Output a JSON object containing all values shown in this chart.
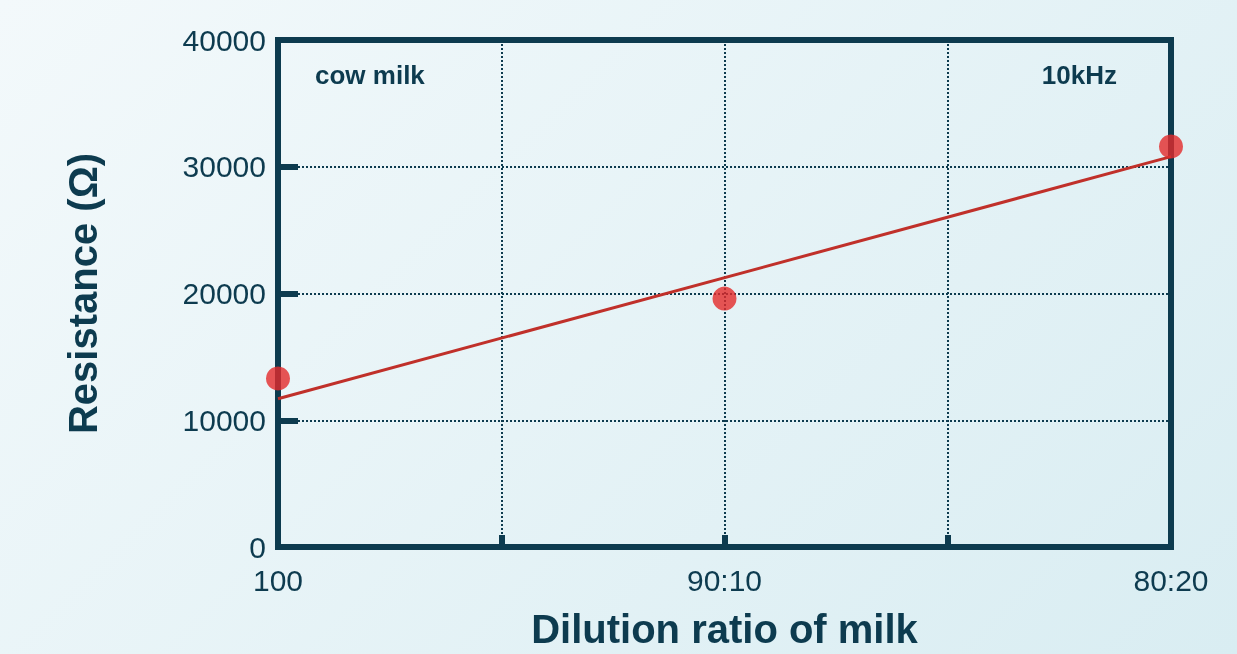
{
  "chart_data": {
    "type": "scatter",
    "xlabel": "Dilution ratio of milk",
    "ylabel": "Resistance (Ω)",
    "annotations": [
      "cow milk",
      "10kHz"
    ],
    "categories": [
      "100",
      null,
      "90:10",
      null,
      "80:20"
    ],
    "ylim": [
      0,
      40000
    ],
    "yticks": [
      0,
      10000,
      20000,
      30000,
      40000
    ],
    "grid": true,
    "marker": "circle",
    "series": [
      {
        "color": "#e32a2a",
        "values": [
          13300,
          null,
          19600,
          null,
          31600
        ]
      },
      {
        "type": "line",
        "color": "#c0302a",
        "values": [
          11700,
          null,
          null,
          null,
          30800
        ],
        "marker": "none"
      }
    ]
  }
}
